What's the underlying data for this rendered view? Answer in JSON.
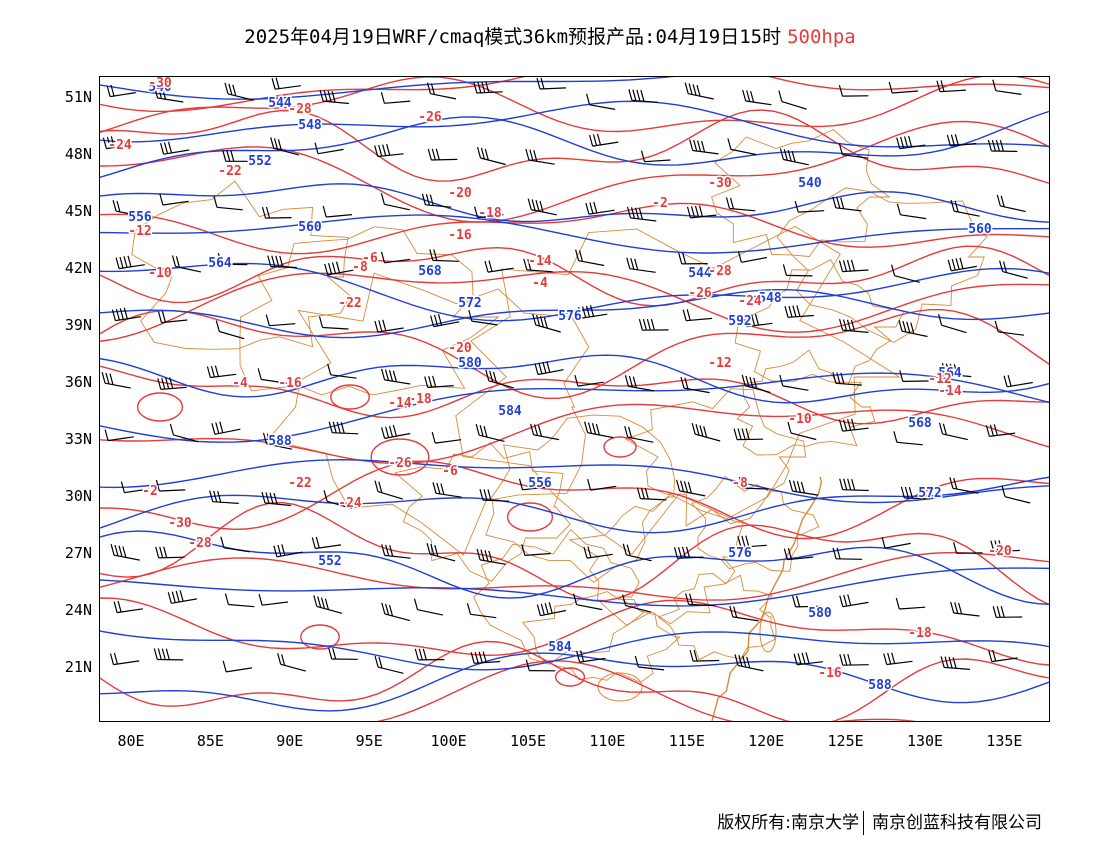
{
  "title": {
    "main": "2025年04月19日WRF/cmaq模式36km预报产品:04月19日15时",
    "level": "500hpa"
  },
  "colors": {
    "height_contour": "#1e3fd8",
    "temp_contour": "#e53b3b",
    "border": "#d98a3a",
    "wind_barb": "#000000"
  },
  "y_labels": [
    "51N",
    "48N",
    "45N",
    "42N",
    "39N",
    "36N",
    "33N",
    "30N",
    "27N",
    "24N",
    "21N"
  ],
  "x_labels": [
    "80E",
    "85E",
    "90E",
    "95E",
    "100E",
    "105E",
    "110E",
    "115E",
    "120E",
    "125E",
    "130E",
    "135E"
  ],
  "height_labels": [
    "540",
    "544",
    "548",
    "552",
    "556",
    "560",
    "564",
    "568",
    "572",
    "576",
    "580",
    "584",
    "588",
    "592"
  ],
  "temp_labels": [
    "-30",
    "-28",
    "-26",
    "-24",
    "-22",
    "-20",
    "-18",
    "-16",
    "-14",
    "-12",
    "-10",
    "-8",
    "-6",
    "-4",
    "-2"
  ],
  "footer": {
    "left": "版权所有:南京大学",
    "right": "南京创蓝科技有限公司"
  }
}
